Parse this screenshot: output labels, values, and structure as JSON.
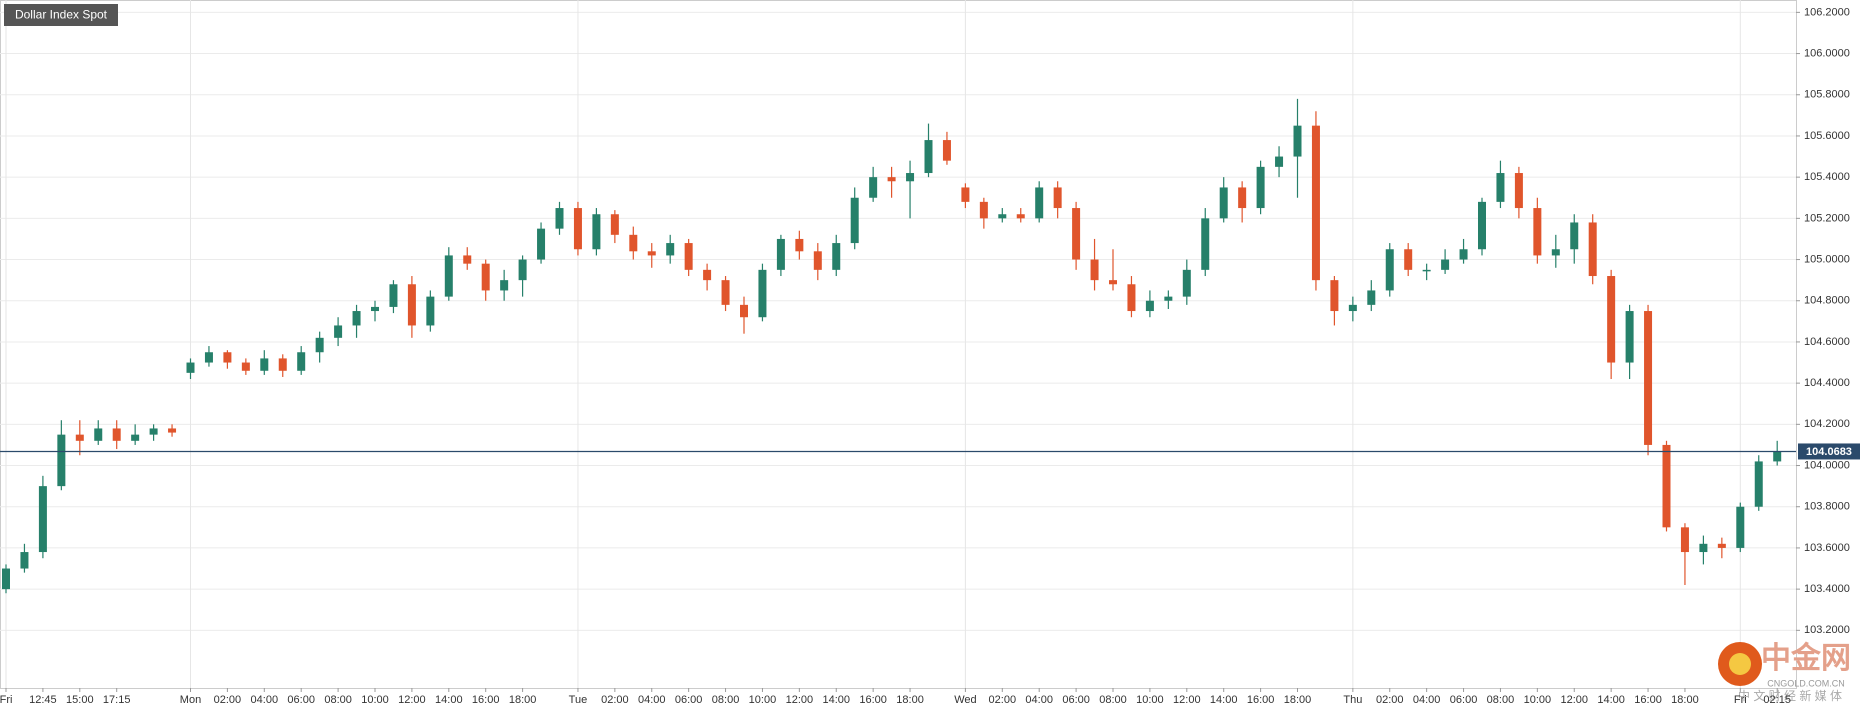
{
  "chart_data": {
    "type": "candlestick",
    "title": "Dollar Index Spot",
    "categories": [
      "Fri",
      null,
      "12:45",
      null,
      "15:00",
      null,
      "17:15",
      null,
      null,
      null,
      "Mon",
      null,
      "02:00",
      null,
      "04:00",
      null,
      "06:00",
      null,
      "08:00",
      null,
      "10:00",
      null,
      "12:00",
      null,
      "14:00",
      null,
      "16:00",
      null,
      "18:00",
      null,
      null,
      "Tue",
      null,
      "02:00",
      null,
      "04:00",
      null,
      "06:00",
      null,
      "08:00",
      null,
      "10:00",
      null,
      "12:00",
      null,
      "14:00",
      null,
      "16:00",
      null,
      "18:00",
      null,
      null,
      "Wed",
      null,
      "02:00",
      null,
      "04:00",
      null,
      "06:00",
      null,
      "08:00",
      null,
      "10:00",
      null,
      "12:00",
      null,
      "14:00",
      null,
      "16:00",
      null,
      "18:00",
      null,
      null,
      "Thu",
      null,
      "02:00",
      null,
      "04:00",
      null,
      "06:00",
      null,
      "08:00",
      null,
      "10:00",
      null,
      "12:00",
      null,
      "14:00",
      null,
      "16:00",
      null,
      "18:00",
      null,
      null,
      "Fri",
      null,
      "02:15"
    ],
    "open": [
      103.4,
      103.5,
      103.58,
      103.9,
      104.15,
      104.12,
      104.18,
      104.12,
      104.15,
      104.18,
      104.45,
      104.5,
      104.55,
      104.5,
      104.46,
      104.52,
      104.46,
      104.55,
      104.62,
      104.68,
      104.75,
      104.77,
      104.88,
      104.68,
      104.82,
      105.02,
      104.98,
      104.85,
      104.9,
      105.0,
      105.15,
      105.25,
      105.05,
      105.22,
      105.12,
      105.04,
      105.02,
      105.08,
      104.95,
      104.9,
      104.78,
      104.72,
      104.95,
      105.1,
      105.04,
      104.95,
      105.08,
      105.3,
      105.4,
      105.38,
      105.42,
      105.58,
      105.35,
      105.28,
      105.2,
      105.22,
      105.2,
      105.35,
      105.25,
      105.0,
      104.9,
      104.88,
      104.75,
      104.8,
      104.82,
      104.95,
      105.2,
      105.35,
      105.25,
      105.45,
      105.5,
      105.65,
      104.9,
      104.75,
      104.78,
      104.85,
      105.05,
      104.95,
      104.95,
      105.0,
      105.05,
      105.28,
      105.42,
      105.25,
      105.02,
      105.05,
      105.18,
      104.92,
      104.5,
      104.75,
      104.1,
      103.7,
      103.58,
      103.62,
      103.6,
      103.8,
      104.02
    ],
    "high": [
      103.52,
      103.62,
      103.95,
      104.22,
      104.22,
      104.22,
      104.22,
      104.2,
      104.2,
      104.2,
      104.52,
      104.58,
      104.56,
      104.52,
      104.56,
      104.54,
      104.58,
      104.65,
      104.72,
      104.78,
      104.8,
      104.9,
      104.92,
      104.85,
      105.06,
      105.06,
      105.0,
      104.95,
      105.02,
      105.18,
      105.28,
      105.28,
      105.25,
      105.24,
      105.16,
      105.08,
      105.12,
      105.1,
      104.98,
      104.92,
      104.82,
      104.98,
      105.12,
      105.14,
      105.08,
      105.12,
      105.35,
      105.45,
      105.45,
      105.48,
      105.66,
      105.62,
      105.37,
      105.3,
      105.25,
      105.25,
      105.38,
      105.38,
      105.28,
      105.1,
      105.05,
      104.92,
      104.85,
      104.85,
      105.0,
      105.25,
      105.4,
      105.38,
      105.48,
      105.55,
      105.78,
      105.72,
      104.92,
      104.82,
      104.9,
      105.08,
      105.08,
      104.98,
      105.05,
      105.1,
      105.3,
      105.48,
      105.45,
      105.3,
      105.12,
      105.22,
      105.22,
      104.95,
      104.78,
      104.78,
      104.12,
      103.72,
      103.66,
      103.65,
      103.82,
      104.05,
      104.12
    ],
    "low": [
      103.38,
      103.48,
      103.55,
      103.88,
      104.05,
      104.1,
      104.08,
      104.1,
      104.12,
      104.14,
      104.42,
      104.48,
      104.47,
      104.44,
      104.44,
      104.43,
      104.44,
      104.5,
      104.58,
      104.62,
      104.7,
      104.74,
      104.62,
      104.65,
      104.8,
      104.95,
      104.8,
      104.8,
      104.82,
      104.98,
      105.12,
      105.02,
      105.02,
      105.08,
      105.0,
      104.96,
      104.98,
      104.92,
      104.85,
      104.75,
      104.64,
      104.7,
      104.92,
      105.0,
      104.9,
      104.92,
      105.05,
      105.28,
      105.3,
      105.2,
      105.4,
      105.46,
      105.25,
      105.15,
      105.18,
      105.18,
      105.18,
      105.2,
      104.95,
      104.85,
      104.85,
      104.72,
      104.72,
      104.76,
      104.78,
      104.92,
      105.18,
      105.18,
      105.22,
      105.4,
      105.3,
      104.85,
      104.68,
      104.7,
      104.75,
      104.82,
      104.92,
      104.9,
      104.93,
      104.98,
      105.02,
      105.25,
      105.2,
      104.98,
      104.96,
      104.98,
      104.88,
      104.42,
      104.42,
      104.05,
      103.68,
      103.42,
      103.52,
      103.55,
      103.58,
      103.78,
      104.0
    ],
    "close": [
      103.5,
      103.58,
      103.9,
      104.15,
      104.12,
      104.18,
      104.12,
      104.15,
      104.18,
      104.16,
      104.5,
      104.55,
      104.5,
      104.46,
      104.52,
      104.46,
      104.55,
      104.62,
      104.68,
      104.75,
      104.77,
      104.88,
      104.68,
      104.82,
      105.02,
      104.98,
      104.85,
      104.9,
      105.0,
      105.15,
      105.25,
      105.05,
      105.22,
      105.12,
      105.04,
      105.02,
      105.08,
      104.95,
      104.9,
      104.78,
      104.72,
      104.95,
      105.1,
      105.04,
      104.95,
      105.08,
      105.3,
      105.4,
      105.38,
      105.42,
      105.58,
      105.48,
      105.28,
      105.2,
      105.22,
      105.2,
      105.35,
      105.25,
      105.0,
      104.9,
      104.88,
      104.75,
      104.8,
      104.82,
      104.95,
      105.2,
      105.35,
      105.25,
      105.45,
      105.5,
      105.65,
      104.9,
      104.75,
      104.78,
      104.85,
      105.05,
      104.95,
      104.95,
      105.0,
      105.05,
      105.28,
      105.42,
      105.25,
      105.02,
      105.05,
      105.18,
      104.92,
      104.5,
      104.75,
      104.1,
      103.7,
      103.58,
      103.62,
      103.6,
      103.8,
      104.02,
      104.0683
    ],
    "up_color": "#26806a",
    "down_color": "#e0552c",
    "ylim": [
      102.92,
      106.26
    ],
    "yticks": [
      {
        "value": 103.2,
        "label": "103.2000"
      },
      {
        "value": 103.4,
        "label": "103.4000"
      },
      {
        "value": 103.6,
        "label": "103.6000"
      },
      {
        "value": 103.8,
        "label": "103.8000"
      },
      {
        "value": 104.0,
        "label": "104.0000"
      },
      {
        "value": 104.2,
        "label": "104.2000"
      },
      {
        "value": 104.4,
        "label": "104.4000"
      },
      {
        "value": 104.6,
        "label": "104.6000"
      },
      {
        "value": 104.8,
        "label": "104.8000"
      },
      {
        "value": 105.0,
        "label": "105.0000"
      },
      {
        "value": 105.2,
        "label": "105.2000"
      },
      {
        "value": 105.4,
        "label": "105.4000"
      },
      {
        "value": 105.6,
        "label": "105.6000"
      },
      {
        "value": 105.8,
        "label": "105.8000"
      },
      {
        "value": 106.0,
        "label": "106.0000"
      },
      {
        "value": 106.2,
        "label": "106.2000"
      }
    ],
    "last_price": 104.0683,
    "grid": true
  },
  "watermark": {
    "brand": "中金网",
    "domain": "CNGOLD.COM.CN",
    "slogan": "中 文 财 经 新 媒 体"
  }
}
